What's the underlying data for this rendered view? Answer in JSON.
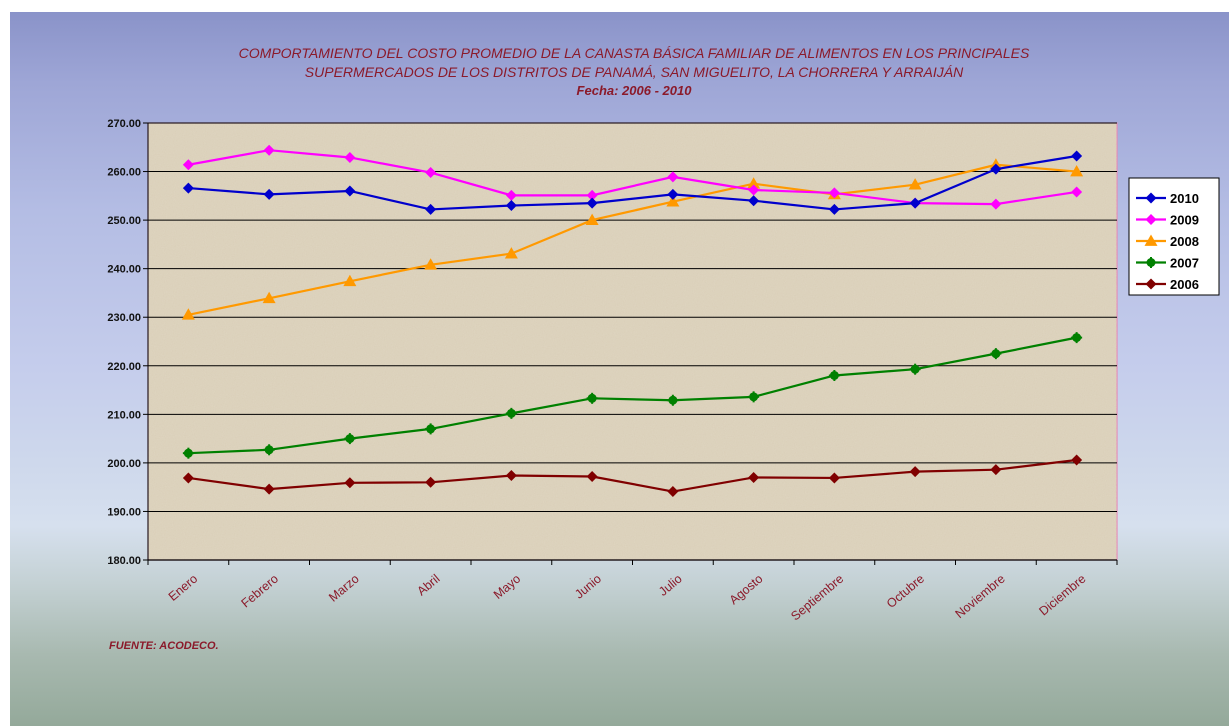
{
  "chart_data": {
    "type": "line",
    "title_lines": [
      "COMPORTAMIENTO DEL COSTO PROMEDIO DE LA CANASTA BÁSICA FAMILIAR DE ALIMENTOS EN LOS PRINCIPALES",
      "SUPERMERCADOS DE LOS DISTRITOS DE PANAMÁ, SAN MIGUELITO, LA CHORRERA Y ARRAIJÁN",
      "Fecha:  2006 - 2010"
    ],
    "categories": [
      "Enero",
      "Febrero",
      "Marzo",
      "Abril",
      "Mayo",
      "Junio",
      "Julio",
      "Agosto",
      "Septiembre",
      "Octubre",
      "Noviembre",
      "Diciembre"
    ],
    "ylim": [
      180,
      270
    ],
    "yticks": [
      "180.00",
      "190.00",
      "200.00",
      "210.00",
      "220.00",
      "230.00",
      "240.00",
      "250.00",
      "260.00",
      "270.00"
    ],
    "grid": true,
    "legend_position": "right",
    "series": [
      {
        "name": "2010",
        "color": "#0000cc",
        "marker": "diamond",
        "values": [
          256.6,
          255.3,
          256.0,
          252.2,
          253.0,
          253.5,
          255.3,
          254.0,
          252.2,
          253.5,
          260.5,
          263.2
        ]
      },
      {
        "name": "2009",
        "color": "#ff00ff",
        "marker": "diamond",
        "values": [
          261.4,
          264.4,
          262.9,
          259.8,
          255.1,
          255.1,
          258.9,
          256.2,
          255.6,
          253.5,
          253.3,
          255.8
        ]
      },
      {
        "name": "2008",
        "color": "#ff9900",
        "marker": "triangle",
        "values": [
          230.5,
          233.9,
          237.4,
          240.8,
          243.1,
          250.0,
          253.8,
          257.5,
          255.3,
          257.3,
          261.4,
          260.0
        ]
      },
      {
        "name": "2007",
        "color": "#008000",
        "marker": "star",
        "values": [
          202.0,
          202.7,
          205.0,
          207.0,
          210.2,
          213.3,
          212.9,
          213.6,
          218.0,
          219.3,
          222.5,
          225.8
        ]
      },
      {
        "name": "2006",
        "color": "#800000",
        "marker": "diamond",
        "values": [
          196.9,
          194.6,
          195.9,
          196.0,
          197.4,
          197.2,
          194.1,
          197.0,
          196.9,
          198.2,
          198.6,
          200.6
        ]
      }
    ],
    "source": "FUENTE:  ACODECO."
  }
}
